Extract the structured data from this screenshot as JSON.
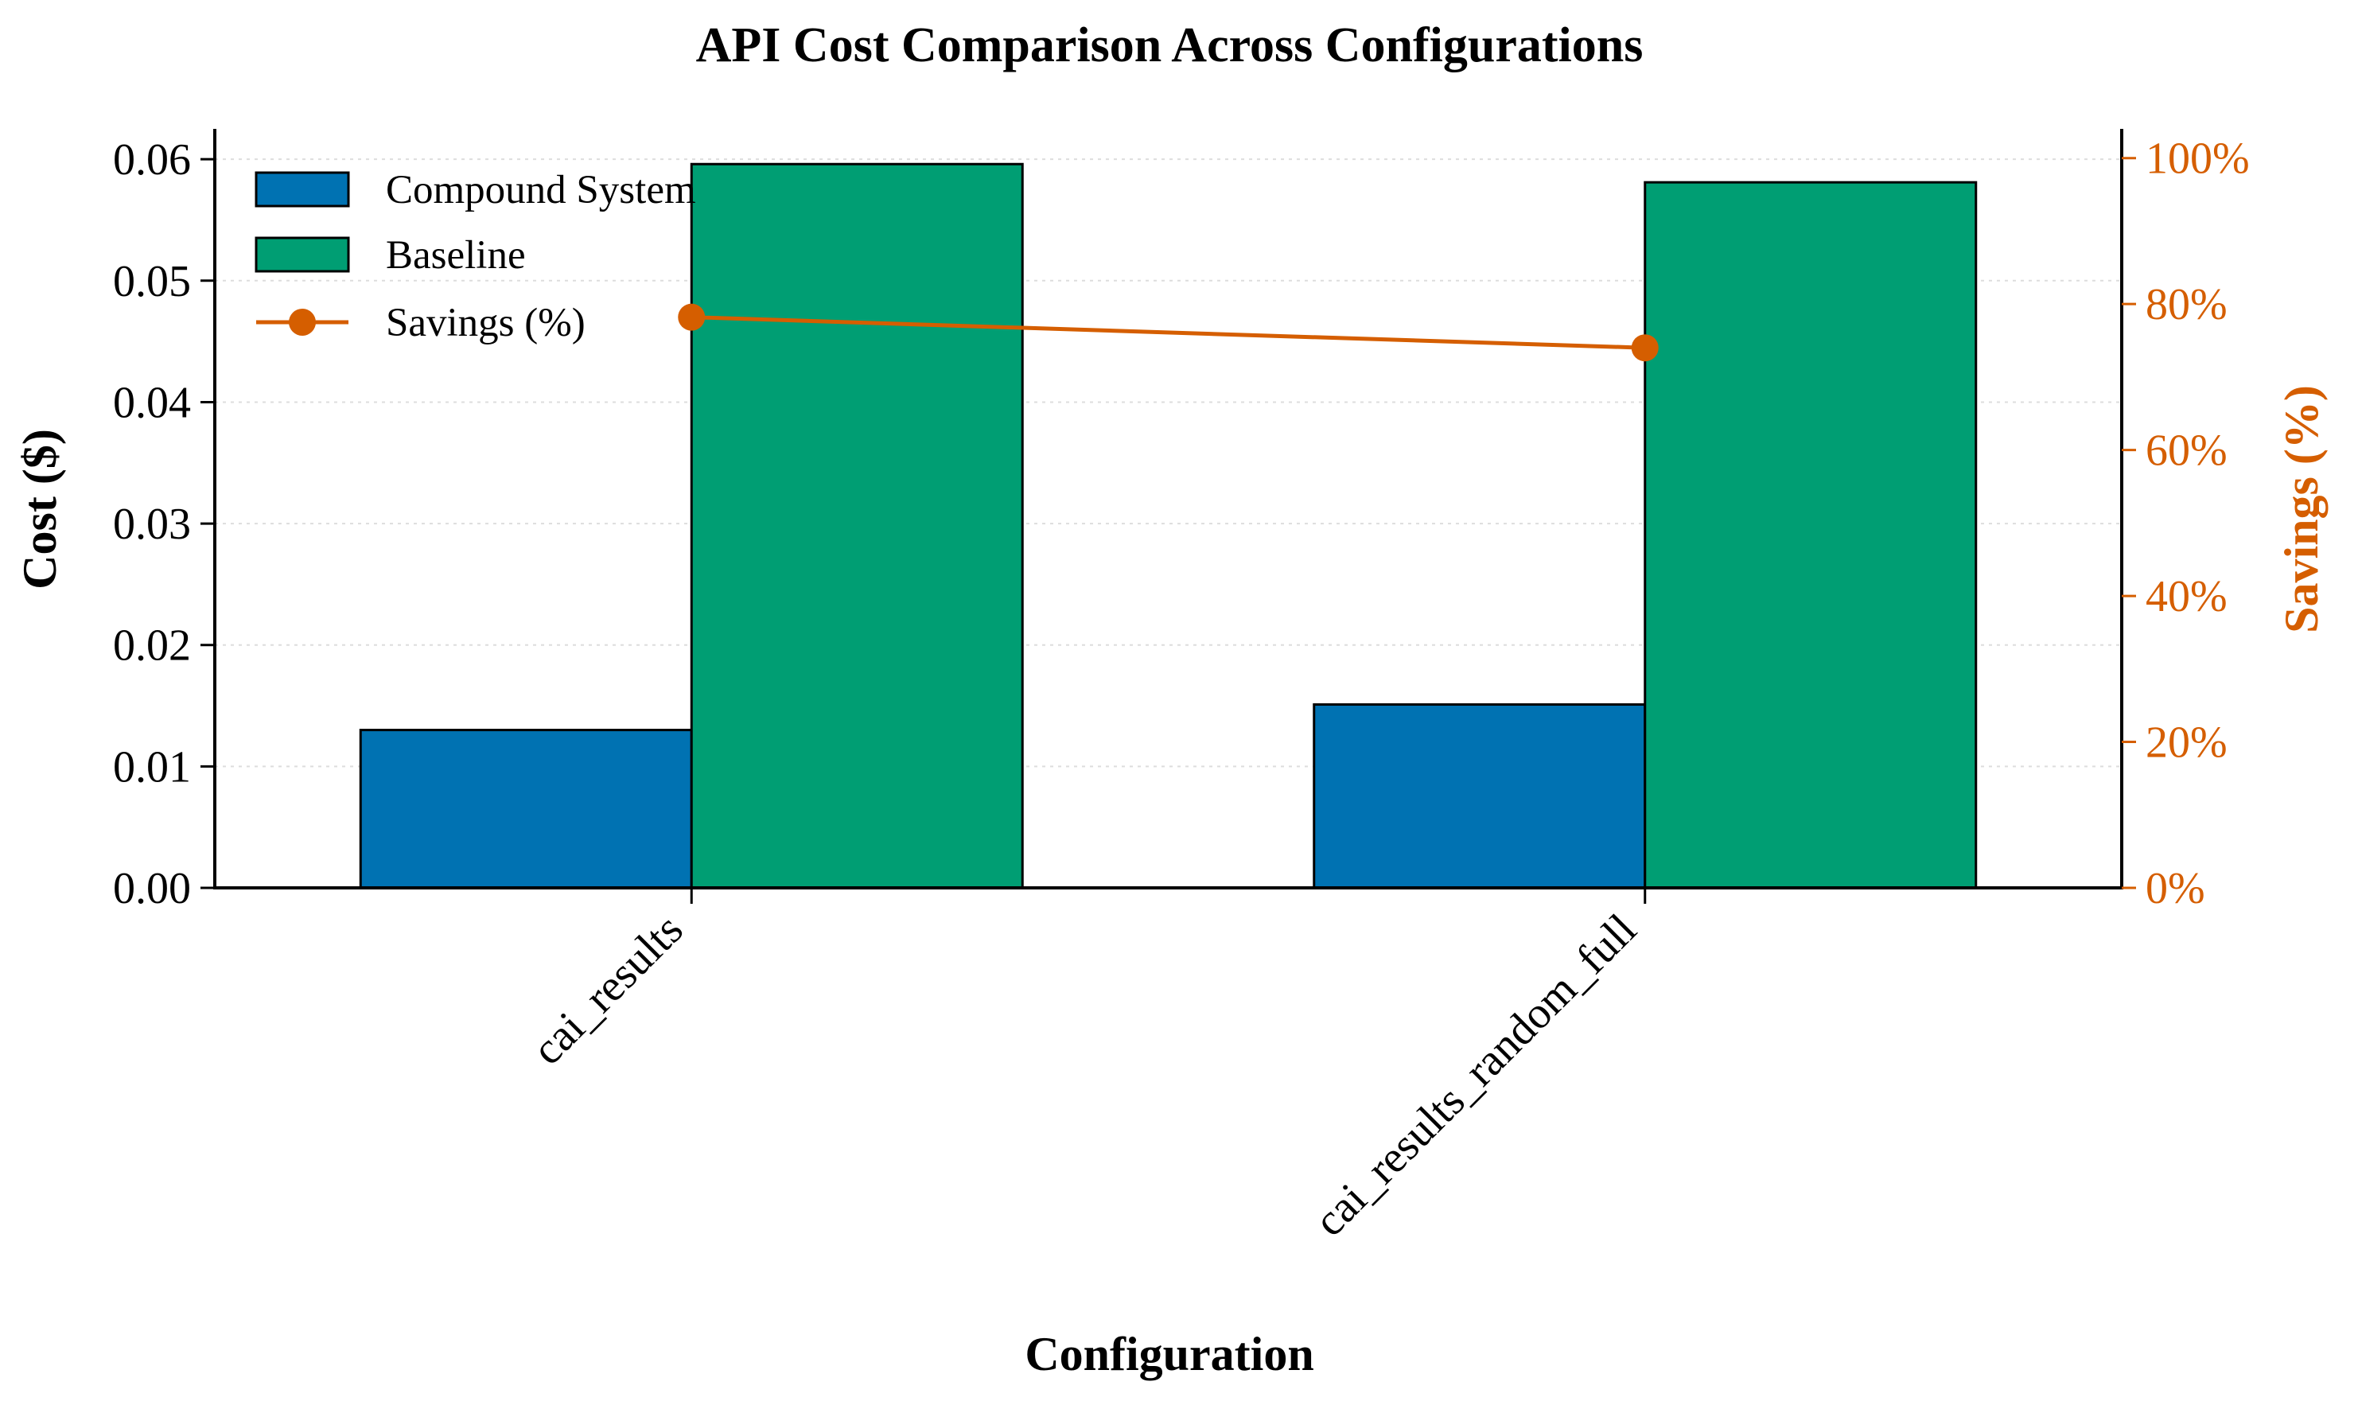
{
  "colors": {
    "compound": "#0072b2",
    "baseline": "#009e73",
    "savings": "#d55e00",
    "axis": "#000000",
    "grid": "#dddddd"
  },
  "chart_data": {
    "type": "bar",
    "title": "API Cost Comparison Across Configurations",
    "xlabel": "Configuration",
    "ylabel": "Cost ($)",
    "y2label": "Savings (%)",
    "categories": [
      "cai_results",
      "cai_results_random_full"
    ],
    "series": [
      {
        "name": "Compound System",
        "values": [
          0.013,
          0.0151
        ]
      },
      {
        "name": "Baseline",
        "values": [
          0.0596,
          0.0581
        ]
      }
    ],
    "line_series": {
      "name": "Savings (%)",
      "values": [
        78.2,
        74.0
      ]
    },
    "ylim": [
      0,
      0.0625
    ],
    "y2lim": [
      0,
      104
    ],
    "yticks": [
      0.0,
      0.01,
      0.02,
      0.03,
      0.04,
      0.05,
      0.06
    ],
    "ytick_labels": [
      "0.00",
      "0.01",
      "0.02",
      "0.03",
      "0.04",
      "0.05",
      "0.06"
    ],
    "y2ticks": [
      0,
      20,
      40,
      60,
      80,
      100
    ],
    "y2tick_labels": [
      "0%",
      "20%",
      "40%",
      "60%",
      "80%",
      "100%"
    ],
    "grid": true,
    "legend_position": "top-left"
  }
}
